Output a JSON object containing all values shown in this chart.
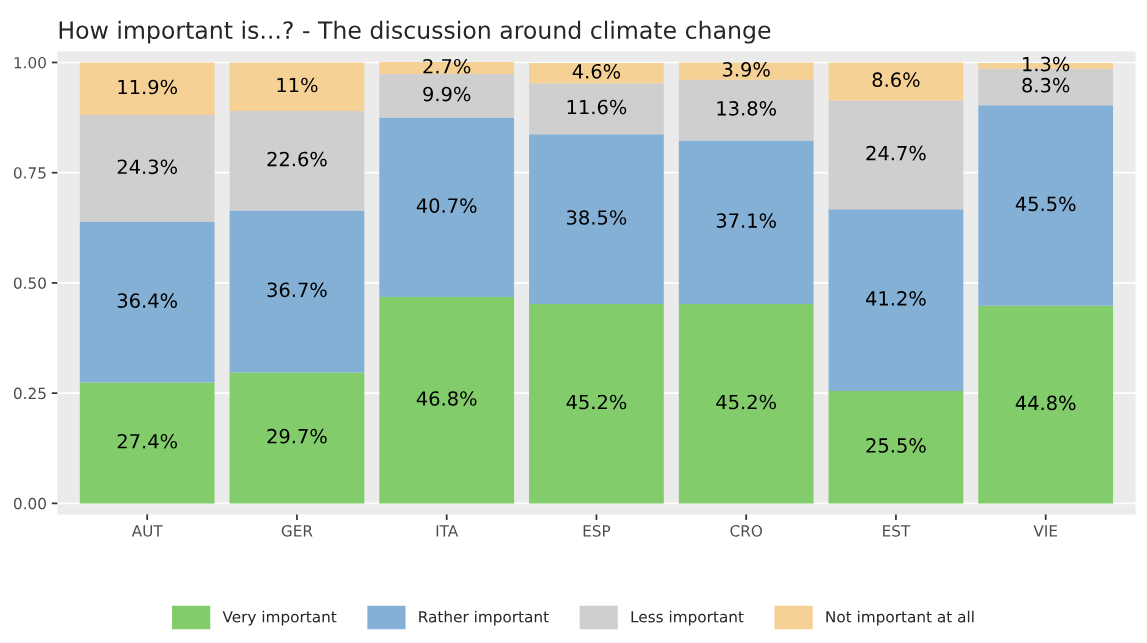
{
  "chart_data": {
    "type": "bar",
    "title": "How important is...? - The discussion around climate change",
    "categories": [
      "AUT",
      "GER",
      "ITA",
      "ESP",
      "CRO",
      "EST",
      "VIE"
    ],
    "stacked": true,
    "ylim": [
      -0.025,
      1.025
    ],
    "yticks": [
      {
        "value": 0,
        "label": "0.00"
      },
      {
        "value": 0.25,
        "label": "0.25"
      },
      {
        "value": 0.5,
        "label": "0.50"
      },
      {
        "value": 0.75,
        "label": "0.75"
      },
      {
        "value": 1,
        "label": "1.00"
      }
    ],
    "grid": "y",
    "legend": "bottom",
    "series": [
      {
        "name": "Very important",
        "color": "#82cc6c",
        "values": [
          0.274,
          0.297,
          0.468,
          0.452,
          0.452,
          0.255,
          0.448
        ],
        "value_labels": [
          "27.4%",
          "29.7%",
          "46.8%",
          "45.2%",
          "45.2%",
          "25.5%",
          "44.8%"
        ]
      },
      {
        "name": "Rather important",
        "color": "#84b0d6",
        "values": [
          0.364,
          0.367,
          0.407,
          0.385,
          0.371,
          0.412,
          0.455
        ],
        "value_labels": [
          "36.4%",
          "36.7%",
          "40.7%",
          "38.5%",
          "37.1%",
          "41.2%",
          "45.5%"
        ]
      },
      {
        "name": "Less important",
        "color": "#d0cfd0",
        "values": [
          0.243,
          0.226,
          0.099,
          0.116,
          0.138,
          0.247,
          0.083
        ],
        "value_labels": [
          "24.3%",
          "22.6%",
          "9.9%",
          "11.6%",
          "13.8%",
          "24.7%",
          "8.3%"
        ]
      },
      {
        "name": "Not important at all",
        "color": "#f5d196",
        "values": [
          0.119,
          0.11,
          0.027,
          0.046,
          0.039,
          0.086,
          0.013
        ],
        "value_labels": [
          "11.9%",
          "11%",
          "2.7%",
          "4.6%",
          "3.9%",
          "8.6%",
          "1.3%"
        ]
      }
    ]
  }
}
